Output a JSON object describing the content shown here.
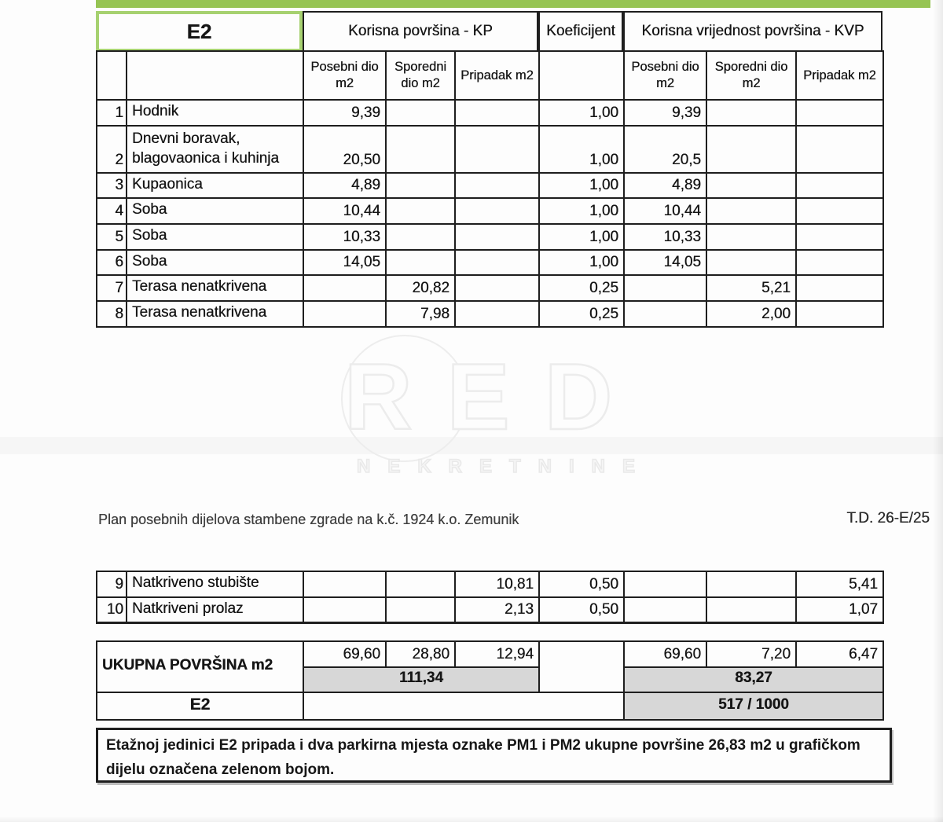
{
  "colors": {
    "accent_green": "#96c453",
    "green_cell_border": "#a6d170",
    "total_fill": "#d7d7d7"
  },
  "watermark": {
    "brand": "RED",
    "subtitle": "NEKRETNINE"
  },
  "page": {
    "plan_title": "Plan posebnih dijelova stambene zgrade na k.č. 1924 k.o. Zemunik",
    "td_ref": "T.D. 26-E/25"
  },
  "table": {
    "unit": "E2",
    "kp_header": "Korisna površina - KP",
    "koef_header": "Koeficijent",
    "kvp_header": "Korisna vrijednost površina - KVP",
    "sub_headers": {
      "posebni": "Posebni dio m2",
      "sporedni": "Sporedni dio m2",
      "pripadak": "Pripadak m2"
    },
    "rows": [
      {
        "num": "1",
        "name": "Hodnik",
        "kp_posebni": "9,39",
        "kp_sporedni": "",
        "kp_pripadak": "",
        "koef": "1,00",
        "kvp_posebni": "9,39",
        "kvp_sporedni": "",
        "kvp_pripadak": ""
      },
      {
        "num": "2",
        "name": "Dnevni boravak, blagovaonica i kuhinja",
        "kp_posebni": "20,50",
        "kp_sporedni": "",
        "kp_pripadak": "",
        "koef": "1,00",
        "kvp_posebni": "20,5",
        "kvp_sporedni": "",
        "kvp_pripadak": ""
      },
      {
        "num": "3",
        "name": "Kupaonica",
        "kp_posebni": "4,89",
        "kp_sporedni": "",
        "kp_pripadak": "",
        "koef": "1,00",
        "kvp_posebni": "4,89",
        "kvp_sporedni": "",
        "kvp_pripadak": ""
      },
      {
        "num": "4",
        "name": "Soba",
        "kp_posebni": "10,44",
        "kp_sporedni": "",
        "kp_pripadak": "",
        "koef": "1,00",
        "kvp_posebni": "10,44",
        "kvp_sporedni": "",
        "kvp_pripadak": ""
      },
      {
        "num": "5",
        "name": "Soba",
        "kp_posebni": "10,33",
        "kp_sporedni": "",
        "kp_pripadak": "",
        "koef": "1,00",
        "kvp_posebni": "10,33",
        "kvp_sporedni": "",
        "kvp_pripadak": ""
      },
      {
        "num": "6",
        "name": "Soba",
        "kp_posebni": "14,05",
        "kp_sporedni": "",
        "kp_pripadak": "",
        "koef": "1,00",
        "kvp_posebni": "14,05",
        "kvp_sporedni": "",
        "kvp_pripadak": ""
      },
      {
        "num": "7",
        "name": "Terasa nenatkrivena",
        "kp_posebni": "",
        "kp_sporedni": "20,82",
        "kp_pripadak": "",
        "koef": "0,25",
        "kvp_posebni": "",
        "kvp_sporedni": "5,21",
        "kvp_pripadak": ""
      },
      {
        "num": "8",
        "name": "Terasa nenatkrivena",
        "kp_posebni": "",
        "kp_sporedni": "7,98",
        "kp_pripadak": "",
        "koef": "0,25",
        "kvp_posebni": "",
        "kvp_sporedni": "2,00",
        "kvp_pripadak": ""
      }
    ],
    "rows_page2": [
      {
        "num": "9",
        "name": "Natkriveno stubište",
        "kp_posebni": "",
        "kp_sporedni": "",
        "kp_pripadak": "10,81",
        "koef": "0,50",
        "kvp_posebni": "",
        "kvp_sporedni": "",
        "kvp_pripadak": "5,41"
      },
      {
        "num": "10",
        "name": "Natkriveni prolaz",
        "kp_posebni": "",
        "kp_sporedni": "",
        "kp_pripadak": "2,13",
        "koef": "0,50",
        "kvp_posebni": "",
        "kvp_sporedni": "",
        "kvp_pripadak": "1,07"
      }
    ],
    "totals": {
      "label": "UKUPNA POVRŠINA m2",
      "kp_posebni": "69,60",
      "kp_sporedni": "28,80",
      "kp_pripadak": "12,94",
      "kp_total": "111,34",
      "kvp_posebni": "69,60",
      "kvp_sporedni": "7,20",
      "kvp_pripadak": "6,47",
      "kvp_total": "83,27",
      "unit_label": "E2",
      "share": "517 / 1000"
    },
    "note": "Etažnoj jedinici E2 pripada i dva parkirna mjesta oznake PM1 i PM2 ukupne površine 26,83 m2 u grafičkom dijelu označena zelenom bojom."
  }
}
